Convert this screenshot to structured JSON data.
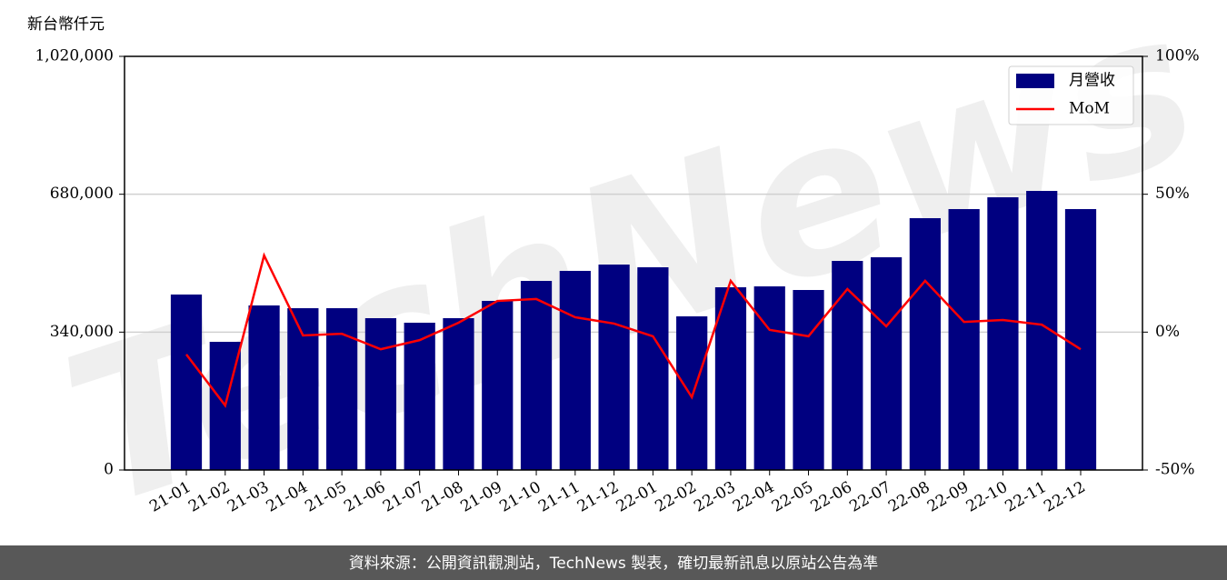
{
  "chart_data": {
    "type": "bar",
    "y_label": "新台幣仟元",
    "watermark": "TechNews",
    "footer": "資料來源：公開資訊觀測站，TechNews 製表，確切最新訊息以原站公告為準",
    "categories": [
      "21-01",
      "21-02",
      "21-03",
      "21-04",
      "21-05",
      "21-06",
      "21-07",
      "21-08",
      "21-09",
      "21-10",
      "21-11",
      "21-12",
      "22-01",
      "22-02",
      "22-03",
      "22-04",
      "22-05",
      "22-06",
      "22-07",
      "22-08",
      "22-09",
      "22-10",
      "22-11",
      "22-12"
    ],
    "series": [
      {
        "name": "月營收",
        "type": "bar",
        "color": "#000080",
        "values": [
          432700,
          316100,
          405800,
          399000,
          399000,
          374400,
          363200,
          374400,
          417000,
          466300,
          491000,
          506600,
          499900,
          378900,
          450600,
          452800,
          443900,
          515600,
          524600,
          621000,
          643400,
          672500,
          688200,
          643400
        ]
      },
      {
        "name": "MoM",
        "type": "line",
        "axis": "y2",
        "color": "#ff0000",
        "values": [
          -8.1,
          -26.6,
          27.8,
          -1.2,
          -0.6,
          -6.2,
          -2.9,
          3.4,
          11.3,
          12.0,
          5.4,
          3.1,
          -1.5,
          -23.6,
          18.6,
          0.8,
          -1.5,
          15.6,
          2.1,
          18.6,
          3.7,
          4.4,
          2.7,
          -6.2
        ]
      }
    ],
    "ylim": [
      0,
      1020000
    ],
    "yticks": [
      0,
      {
        "value": 340000,
        "label": "340,000"
      },
      {
        "value": 680000,
        "label": "680,000"
      },
      {
        "value": 1020000,
        "label": "1,020,000"
      }
    ],
    "y2lim": [
      -50,
      100
    ],
    "y2ticks": [
      {
        "value": -50,
        "label": "-50%"
      },
      {
        "value": 0,
        "label": "0%"
      },
      {
        "value": 50,
        "label": "50%"
      },
      {
        "value": 100,
        "label": "100%"
      }
    ],
    "grid": true,
    "legend": "upper right"
  }
}
